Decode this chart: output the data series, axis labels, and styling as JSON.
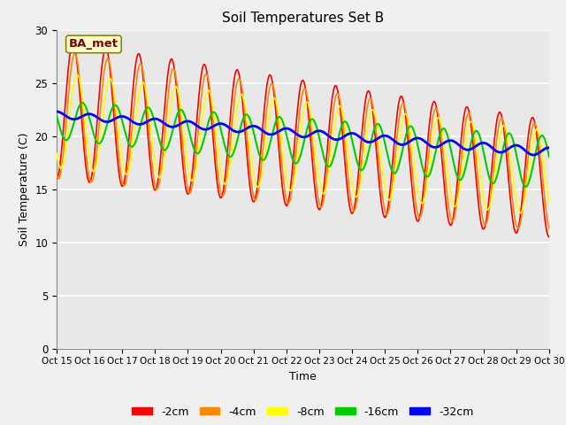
{
  "title": "Soil Temperatures Set B",
  "xlabel": "Time",
  "ylabel": "Soil Temperature (C)",
  "ylim": [
    0,
    30
  ],
  "xlim": [
    0,
    360
  ],
  "fig_bg_color": "#f0f0f0",
  "plot_bg_color": "#e8e8e8",
  "annotation_text": "BA_met",
  "annotation_bg": "#ffffcc",
  "annotation_border": "#888800",
  "annotation_text_color": "#800000",
  "tick_labels": [
    "Oct 15",
    "Oct 16",
    "Oct 17",
    "Oct 18",
    "Oct 19",
    "Oct 20",
    "Oct 21",
    "Oct 22",
    "Oct 23",
    "Oct 24",
    "Oct 25",
    "Oct 26",
    "Oct 27",
    "Oct 28",
    "Oct 29",
    "Oct 30"
  ],
  "legend_labels": [
    "-2cm",
    "-4cm",
    "-8cm",
    "-16cm",
    "-32cm"
  ],
  "line_colors": [
    "#ff0000",
    "#ff8800",
    "#ffff00",
    "#00cc00",
    "#0000ff"
  ],
  "line_widths": [
    1.2,
    1.2,
    1.2,
    1.5,
    2.0
  ],
  "n_points": 721,
  "depth_params": {
    "d2": {
      "mean_start": 22.5,
      "mean_end": 16.0,
      "amp_start": 6.5,
      "amp_end": 5.5,
      "phase": 0.0
    },
    "d4": {
      "mean_start": 22.0,
      "mean_end": 16.0,
      "amp_start": 6.0,
      "amp_end": 5.0,
      "phase": 0.35
    },
    "d8": {
      "mean_start": 21.5,
      "mean_end": 16.5,
      "amp_start": 4.5,
      "amp_end": 4.0,
      "phase": 0.8
    },
    "d16": {
      "mean_start": 21.5,
      "mean_end": 17.5,
      "amp_start": 1.8,
      "amp_end": 2.5,
      "phase": 1.8
    },
    "d32": {
      "mean_start": 22.0,
      "mean_end": 18.5,
      "amp_start": 0.3,
      "amp_end": 0.4,
      "phase": 3.2
    }
  }
}
